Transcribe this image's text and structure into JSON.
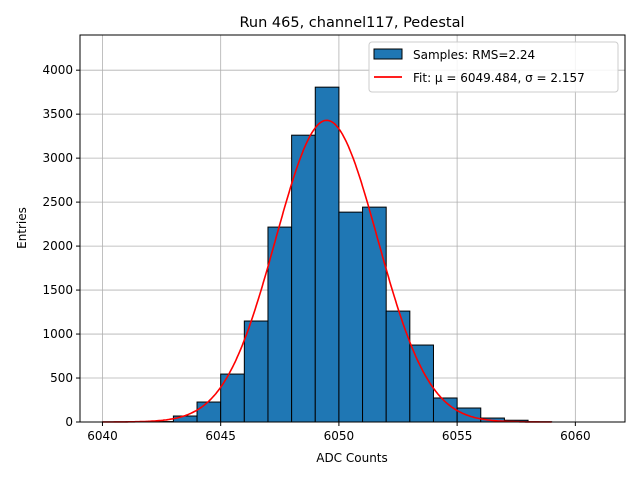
{
  "chart_data": {
    "type": "bar",
    "title": "Run 465, channel117, Pedestal",
    "xlabel": "ADC Counts",
    "ylabel": "Entries",
    "xlim": [
      6039.05,
      6062.1
    ],
    "ylim": [
      0,
      4400
    ],
    "grid": true,
    "xticks": [
      6040,
      6045,
      6050,
      6055,
      6060
    ],
    "yticks": [
      0,
      500,
      1000,
      1500,
      2000,
      2500,
      3000,
      3500,
      4000
    ],
    "bins": {
      "edges_start": [
        6040,
        6041,
        6042,
        6043,
        6044,
        6045,
        6046,
        6047,
        6048,
        6049,
        6050,
        6051,
        6052,
        6053,
        6054,
        6055,
        6056,
        6057,
        6058
      ],
      "bin_width": 1,
      "counts": [
        2,
        3,
        5,
        68,
        227,
        545,
        1148,
        2216,
        3261,
        3807,
        2386,
        2443,
        1261,
        875,
        273,
        159,
        45,
        20,
        3
      ]
    },
    "fit": {
      "mu": 6049.484,
      "sigma": 2.157,
      "amplitude": 3430,
      "range": [
        6040,
        6059
      ]
    },
    "colors": {
      "bar": "#1f77b4",
      "fit": "#ff0000"
    },
    "legend": {
      "position": "top-right",
      "entries": [
        "Samples: RMS=2.24",
        "Fit: μ = 6049.484, σ = 2.157"
      ]
    }
  }
}
